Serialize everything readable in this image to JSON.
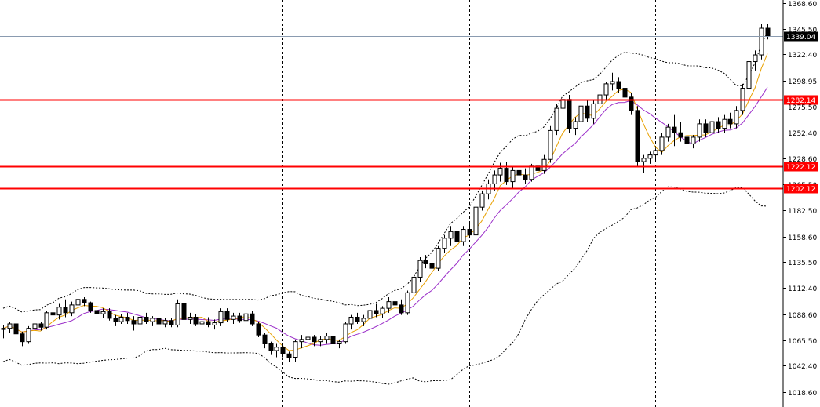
{
  "chart_data": {
    "type": "candlestick",
    "title": "",
    "y_axis": {
      "position": "right",
      "ylim": [
        1010.0,
        1372.0
      ],
      "tick_labels": [
        "1368.60",
        "1345.50",
        "1322.40",
        "1298.95",
        "1275.50",
        "1252.40",
        "1228.60",
        "1205.50",
        "1182.50",
        "1158.60",
        "1135.50",
        "1112.40",
        "1088.60",
        "1065.50",
        "1042.40",
        "1018.60"
      ],
      "tick_values": [
        1368.6,
        1345.5,
        1322.4,
        1298.95,
        1275.5,
        1252.4,
        1228.6,
        1205.5,
        1182.5,
        1158.6,
        1135.5,
        1112.4,
        1088.6,
        1065.5,
        1042.4,
        1018.6
      ]
    },
    "grid": "vertical-dashed",
    "vertical_grid_bars": [
      15,
      45,
      75,
      105
    ],
    "current_price": {
      "value": 1339.04,
      "label": "1339.04",
      "line_color": "#8a9bb0",
      "label_bg": "#000000",
      "label_fg": "#ffffff"
    },
    "levels": [
      {
        "value": 1282.14,
        "label": "1282.14",
        "color": "#ff0000"
      },
      {
        "value": 1222.12,
        "label": "1222.12",
        "color": "#ff0000"
      },
      {
        "value": 1202.12,
        "label": "1202.12",
        "color": "#ff0000"
      }
    ],
    "indicators": {
      "bollinger_bands": {
        "style": "dotted",
        "color": "#000000"
      },
      "ma_fast": {
        "color": "#e8a000"
      },
      "ma_slow": {
        "color": "#9b2fc9"
      }
    },
    "candles": [
      [
        1075,
        1079,
        1067,
        1076
      ],
      [
        1076,
        1082,
        1072,
        1080
      ],
      [
        1080,
        1082,
        1068,
        1071
      ],
      [
        1071,
        1073,
        1060,
        1064
      ],
      [
        1064,
        1078,
        1062,
        1076
      ],
      [
        1076,
        1083,
        1070,
        1080
      ],
      [
        1080,
        1082,
        1074,
        1077
      ],
      [
        1077,
        1092,
        1075,
        1090
      ],
      [
        1090,
        1094,
        1086,
        1088
      ],
      [
        1088,
        1098,
        1084,
        1095
      ],
      [
        1095,
        1102,
        1086,
        1090
      ],
      [
        1090,
        1100,
        1087,
        1097
      ],
      [
        1097,
        1104,
        1093,
        1102
      ],
      [
        1102,
        1104,
        1096,
        1099
      ],
      [
        1099,
        1100,
        1090,
        1092
      ],
      [
        1092,
        1096,
        1084,
        1089
      ],
      [
        1089,
        1094,
        1085,
        1091
      ],
      [
        1091,
        1094,
        1083,
        1085
      ],
      [
        1085,
        1088,
        1078,
        1082
      ],
      [
        1082,
        1089,
        1080,
        1086
      ],
      [
        1086,
        1090,
        1080,
        1083
      ],
      [
        1083,
        1087,
        1074,
        1080
      ],
      [
        1080,
        1088,
        1078,
        1086
      ],
      [
        1086,
        1090,
        1080,
        1082
      ],
      [
        1082,
        1087,
        1078,
        1085
      ],
      [
        1085,
        1088,
        1076,
        1080
      ],
      [
        1080,
        1085,
        1077,
        1083
      ],
      [
        1083,
        1085,
        1077,
        1079
      ],
      [
        1079,
        1102,
        1077,
        1098
      ],
      [
        1098,
        1100,
        1082,
        1084
      ],
      [
        1084,
        1090,
        1080,
        1086
      ],
      [
        1086,
        1089,
        1078,
        1080
      ],
      [
        1080,
        1084,
        1076,
        1082
      ],
      [
        1082,
        1086,
        1077,
        1079
      ],
      [
        1079,
        1084,
        1075,
        1081
      ],
      [
        1081,
        1094,
        1078,
        1091
      ],
      [
        1091,
        1094,
        1082,
        1084
      ],
      [
        1084,
        1090,
        1080,
        1087
      ],
      [
        1087,
        1090,
        1081,
        1083
      ],
      [
        1083,
        1092,
        1078,
        1089
      ],
      [
        1089,
        1092,
        1078,
        1080
      ],
      [
        1080,
        1082,
        1068,
        1070
      ],
      [
        1070,
        1072,
        1058,
        1062
      ],
      [
        1062,
        1064,
        1052,
        1056
      ],
      [
        1056,
        1062,
        1050,
        1059
      ],
      [
        1059,
        1061,
        1050,
        1053
      ],
      [
        1053,
        1055,
        1046,
        1050
      ],
      [
        1050,
        1066,
        1046,
        1064
      ],
      [
        1064,
        1070,
        1058,
        1066
      ],
      [
        1066,
        1070,
        1062,
        1068
      ],
      [
        1068,
        1070,
        1060,
        1064
      ],
      [
        1064,
        1069,
        1060,
        1066
      ],
      [
        1066,
        1072,
        1062,
        1069
      ],
      [
        1069,
        1071,
        1060,
        1062
      ],
      [
        1062,
        1066,
        1058,
        1064
      ],
      [
        1064,
        1082,
        1062,
        1080
      ],
      [
        1080,
        1088,
        1075,
        1086
      ],
      [
        1086,
        1090,
        1080,
        1082
      ],
      [
        1082,
        1088,
        1078,
        1085
      ],
      [
        1085,
        1095,
        1082,
        1092
      ],
      [
        1092,
        1098,
        1086,
        1089
      ],
      [
        1089,
        1096,
        1085,
        1094
      ],
      [
        1094,
        1104,
        1090,
        1100
      ],
      [
        1100,
        1106,
        1094,
        1097
      ],
      [
        1097,
        1102,
        1088,
        1090
      ],
      [
        1090,
        1110,
        1088,
        1108
      ],
      [
        1108,
        1125,
        1105,
        1122
      ],
      [
        1122,
        1140,
        1118,
        1137
      ],
      [
        1137,
        1142,
        1130,
        1134
      ],
      [
        1134,
        1140,
        1126,
        1130
      ],
      [
        1130,
        1150,
        1128,
        1148
      ],
      [
        1148,
        1160,
        1144,
        1157
      ],
      [
        1157,
        1168,
        1150,
        1163
      ],
      [
        1163,
        1166,
        1150,
        1154
      ],
      [
        1154,
        1168,
        1150,
        1165
      ],
      [
        1165,
        1172,
        1158,
        1160
      ],
      [
        1160,
        1188,
        1158,
        1185
      ],
      [
        1185,
        1200,
        1182,
        1197
      ],
      [
        1197,
        1210,
        1192,
        1206
      ],
      [
        1206,
        1218,
        1200,
        1214
      ],
      [
        1214,
        1225,
        1208,
        1220
      ],
      [
        1220,
        1226,
        1205,
        1208
      ],
      [
        1208,
        1222,
        1202,
        1218
      ],
      [
        1218,
        1226,
        1210,
        1214
      ],
      [
        1214,
        1220,
        1206,
        1210
      ],
      [
        1210,
        1224,
        1208,
        1222
      ],
      [
        1222,
        1226,
        1214,
        1218
      ],
      [
        1218,
        1232,
        1215,
        1228
      ],
      [
        1228,
        1258,
        1225,
        1254
      ],
      [
        1254,
        1278,
        1250,
        1274
      ],
      [
        1274,
        1286,
        1262,
        1282
      ],
      [
        1282,
        1286,
        1252,
        1256
      ],
      [
        1256,
        1266,
        1250,
        1262
      ],
      [
        1262,
        1280,
        1258,
        1276
      ],
      [
        1276,
        1282,
        1262,
        1265
      ],
      [
        1265,
        1282,
        1260,
        1278
      ],
      [
        1278,
        1290,
        1272,
        1286
      ],
      [
        1286,
        1298,
        1282,
        1296
      ],
      [
        1296,
        1306,
        1290,
        1298
      ],
      [
        1298,
        1302,
        1288,
        1292
      ],
      [
        1292,
        1296,
        1278,
        1284
      ],
      [
        1284,
        1288,
        1268,
        1272
      ],
      [
        1272,
        1276,
        1222,
        1226
      ],
      [
        1226,
        1232,
        1216,
        1229
      ],
      [
        1229,
        1235,
        1224,
        1232
      ],
      [
        1232,
        1238,
        1226,
        1236
      ],
      [
        1236,
        1252,
        1232,
        1248
      ],
      [
        1248,
        1260,
        1244,
        1257
      ],
      [
        1257,
        1268,
        1240,
        1252
      ],
      [
        1252,
        1262,
        1244,
        1248
      ],
      [
        1248,
        1252,
        1238,
        1242
      ],
      [
        1242,
        1250,
        1238,
        1248
      ],
      [
        1248,
        1264,
        1244,
        1260
      ],
      [
        1260,
        1264,
        1248,
        1252
      ],
      [
        1252,
        1266,
        1250,
        1262
      ],
      [
        1262,
        1266,
        1252,
        1256
      ],
      [
        1256,
        1268,
        1252,
        1264
      ],
      [
        1264,
        1270,
        1256,
        1260
      ],
      [
        1260,
        1276,
        1256,
        1272
      ],
      [
        1272,
        1296,
        1268,
        1292
      ],
      [
        1292,
        1320,
        1288,
        1316
      ],
      [
        1316,
        1326,
        1308,
        1322
      ],
      [
        1322,
        1350,
        1318,
        1346
      ],
      [
        1346,
        1350,
        1336,
        1339
      ]
    ]
  }
}
